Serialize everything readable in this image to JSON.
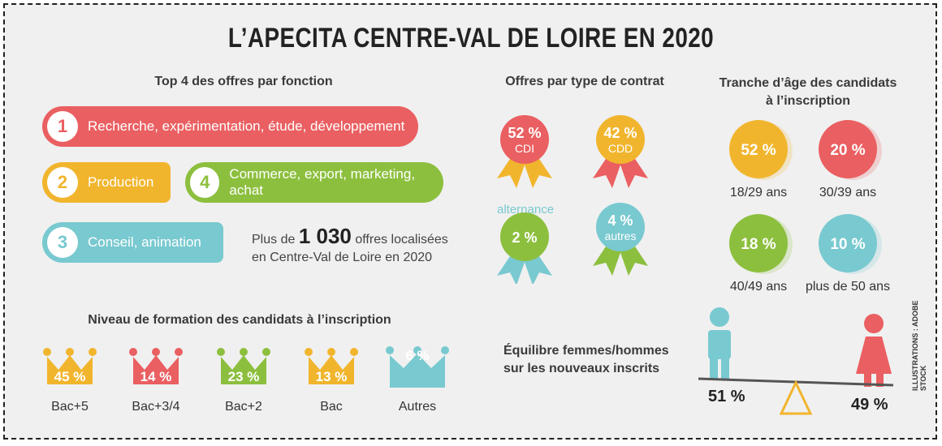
{
  "title": "L’APECITA CENTRE-VAL DE LOIRE EN 2020",
  "colors": {
    "red": "#ea5f61",
    "yellow": "#f1b52d",
    "green": "#8cbf3e",
    "teal": "#79c9d0"
  },
  "top_offers": {
    "heading": "Top 4 des offres par fonction",
    "items": [
      {
        "rank": "1",
        "label": "Recherche, expérimentation, étude, développement",
        "color": "red"
      },
      {
        "rank": "2",
        "label": "Production",
        "color": "yellow"
      },
      {
        "rank": "4",
        "label": "Commerce, export, marketing, achat",
        "color": "green"
      },
      {
        "rank": "3",
        "label": "Conseil, animation",
        "color": "teal"
      }
    ],
    "summary_prefix": "Plus de",
    "summary_number": "1 030",
    "summary_suffix": "offres localisées",
    "summary_line2": "en Centre-Val de Loire en 2020"
  },
  "contracts": {
    "heading": "Offres par type de contrat",
    "alternance_label": "alternance",
    "items": [
      {
        "value": "52 %",
        "label": "CDI",
        "color": "red",
        "ribbon": "yellow"
      },
      {
        "value": "42 %",
        "label": "CDD",
        "color": "yellow",
        "ribbon": "red"
      },
      {
        "value": "2 %",
        "label": "",
        "color": "green",
        "ribbon": "teal"
      },
      {
        "value": "4 %",
        "label": "autres",
        "color": "teal",
        "ribbon": "green"
      }
    ]
  },
  "age": {
    "heading_line1": "Tranche d’âge des candidats",
    "heading_line2": "à l’inscription",
    "items": [
      {
        "value": "52 %",
        "label": "18/29 ans",
        "color": "yellow"
      },
      {
        "value": "20 %",
        "label": "30/39 ans",
        "color": "red"
      },
      {
        "value": "18 %",
        "label": "40/49 ans",
        "color": "green"
      },
      {
        "value": "10 %",
        "label": "plus de 50 ans",
        "color": "teal"
      }
    ]
  },
  "education": {
    "heading": "Niveau de formation des candidats à l’inscription",
    "items": [
      {
        "value": "45 %",
        "label": "Bac+5",
        "color": "yellow"
      },
      {
        "value": "14 %",
        "label": "Bac+3/4",
        "color": "red"
      },
      {
        "value": "23 %",
        "label": "Bac+2",
        "color": "green"
      },
      {
        "value": "13 %",
        "label": "Bac",
        "color": "yellow"
      },
      {
        "value": "6 %",
        "label": "Autres",
        "color": "teal"
      }
    ]
  },
  "gender": {
    "heading_line1": "Équilibre femmes/hommes",
    "heading_line2": "sur les nouveaux inscrits",
    "men_value": "51 %",
    "women_value": "49 %"
  },
  "credit": "ILLUSTRATIONS : ADOBE STOCK",
  "chart_data": [
    {
      "type": "bar",
      "title": "Top 4 des offres par fonction",
      "categories": [
        "Recherche, expérimentation, étude, développement",
        "Production",
        "Conseil, animation",
        "Commerce, export, marketing, achat"
      ],
      "values": [
        1,
        2,
        3,
        4
      ]
    },
    {
      "type": "pie",
      "title": "Offres par type de contrat",
      "categories": [
        "CDI",
        "CDD",
        "alternance",
        "autres"
      ],
      "values": [
        52,
        42,
        2,
        4
      ]
    },
    {
      "type": "pie",
      "title": "Tranche d’âge des candidats à l’inscription",
      "categories": [
        "18/29 ans",
        "30/39 ans",
        "40/49 ans",
        "plus de 50 ans"
      ],
      "values": [
        52,
        20,
        18,
        10
      ]
    },
    {
      "type": "bar",
      "title": "Niveau de formation des candidats à l’inscription",
      "categories": [
        "Bac+5",
        "Bac+3/4",
        "Bac+2",
        "Bac",
        "Autres"
      ],
      "values": [
        45,
        14,
        23,
        13,
        6
      ]
    },
    {
      "type": "pie",
      "title": "Équilibre femmes/hommes sur les nouveaux inscrits",
      "categories": [
        "hommes",
        "femmes"
      ],
      "values": [
        51,
        49
      ]
    }
  ]
}
